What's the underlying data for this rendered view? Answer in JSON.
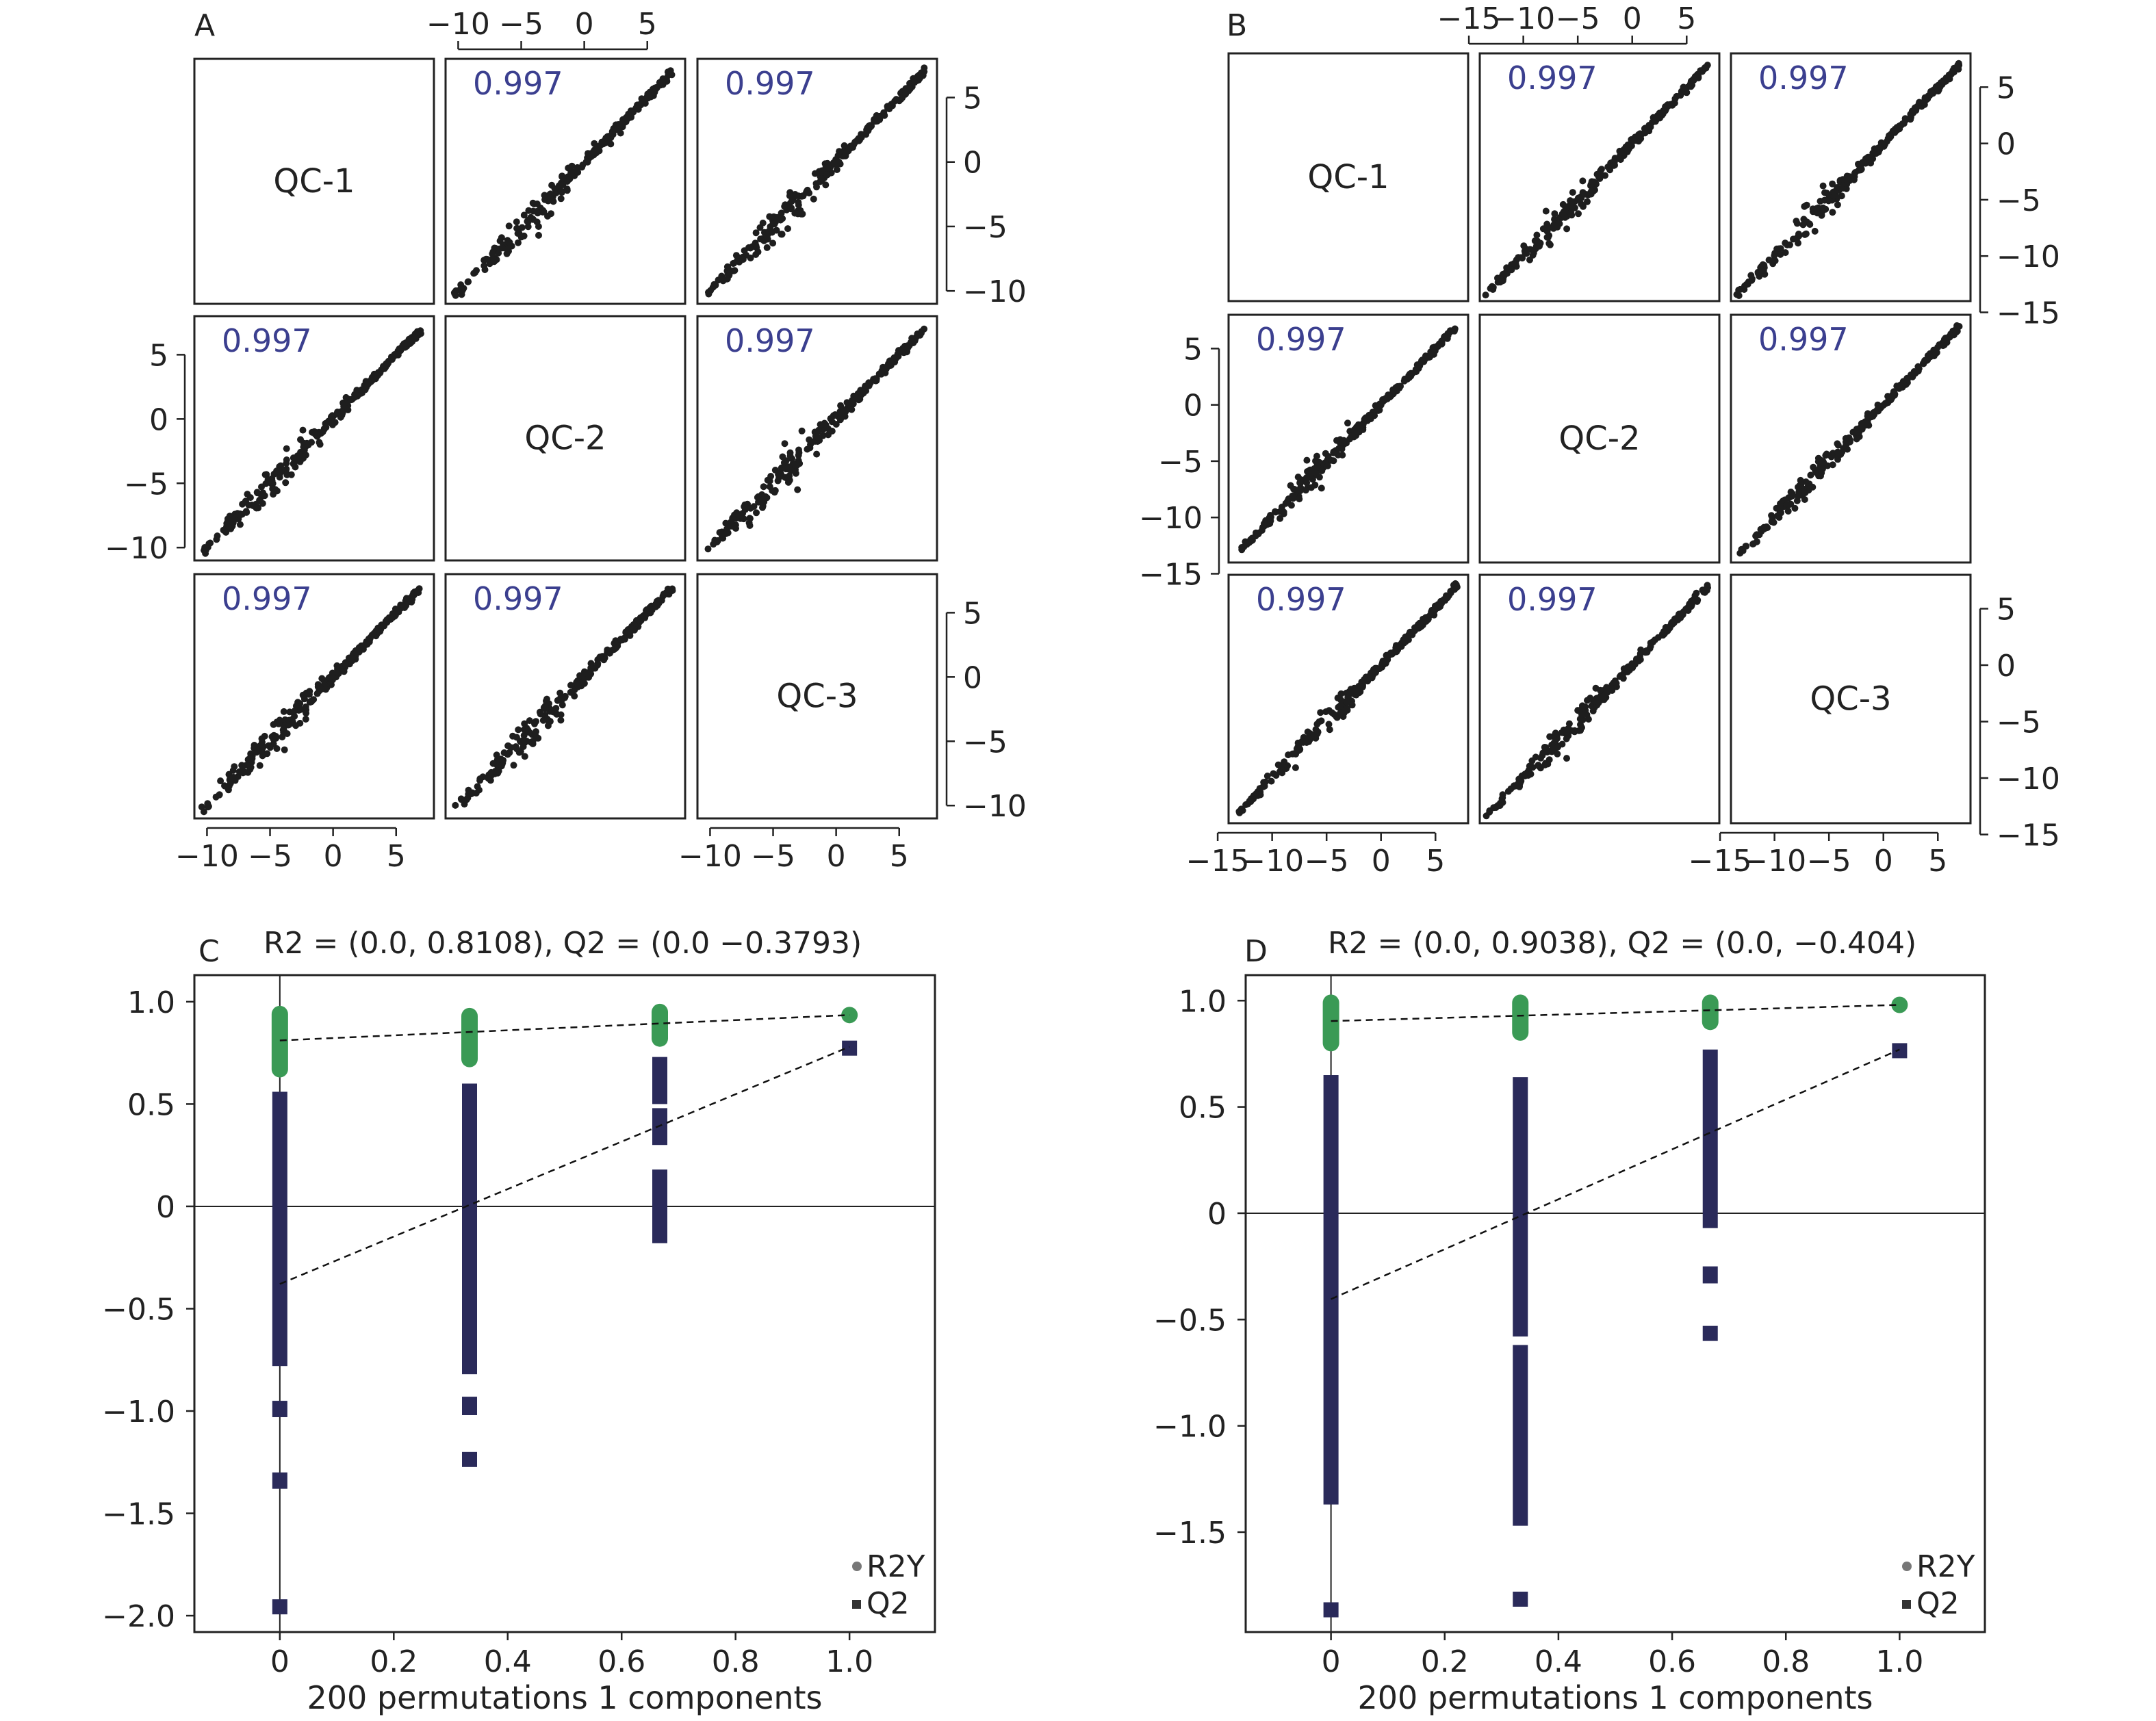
{
  "chart_data": [
    {
      "panel": "A",
      "type": "scatter",
      "samples": [
        "QC-1",
        "QC-2",
        "QC-3"
      ],
      "correlation": "0.997",
      "axis_range": [
        -11,
        8
      ],
      "tick_values": [
        -10,
        -5,
        0,
        5
      ],
      "tick_labels": [
        "−10",
        "−5",
        "0",
        "5"
      ],
      "grid": false
    },
    {
      "panel": "B",
      "type": "scatter",
      "samples": [
        "QC-1",
        "QC-2",
        "QC-3"
      ],
      "correlation": "0.997",
      "axis_range": [
        -14,
        8
      ],
      "tick_values": [
        -15,
        -10,
        -5,
        0,
        5
      ],
      "tick_labels": [
        "−15",
        "−10",
        "−5",
        "0",
        "5"
      ],
      "grid": false
    },
    {
      "panel": "C",
      "type": "scatter",
      "title": "R2 = (0.0, 0.8108), Q2 = (0.0 −0.3793)",
      "xlabel": "200 permutations 1 components",
      "ylabel": "",
      "xlim": [
        -0.15,
        1.15
      ],
      "ylim": [
        -2.08,
        1.13
      ],
      "x_ticks": [
        0,
        0.2,
        0.4,
        0.6,
        0.8,
        1.0
      ],
      "x_tick_labels": [
        "0",
        "0.2",
        "0.4",
        "0.6",
        "0.8",
        "1.0"
      ],
      "y_ticks": [
        1.0,
        0.5,
        0,
        -0.5,
        -1.0,
        -1.5,
        -2.0
      ],
      "y_tick_labels": [
        "1.0",
        "0.5",
        "0",
        "−0.5",
        "−1.0",
        "−1.5",
        "−2.0"
      ],
      "legend": [
        "R2Y",
        "Q2"
      ],
      "legend_position": "bottom-right",
      "r2y_line": [
        [
          0.0,
          0.8108
        ],
        [
          1.0,
          0.935
        ]
      ],
      "q2_line": [
        [
          0.0,
          -0.3793
        ],
        [
          1.0,
          0.78
        ]
      ],
      "series": [
        {
          "name": "R2Y",
          "points": [
            {
              "x": 0.0,
              "y_min": 0.67,
              "y_max": 0.94
            },
            {
              "x": 0.333,
              "y_min": 0.72,
              "y_max": 0.93
            },
            {
              "x": 0.667,
              "y_min": 0.82,
              "y_max": 0.95
            },
            {
              "x": 1.0,
              "y_min": 0.935,
              "y_max": 0.935
            }
          ]
        },
        {
          "name": "Q2",
          "segments": [
            {
              "x": 0.0,
              "from": 0.56,
              "to": -0.78
            },
            {
              "x": 0.0,
              "from": -0.95,
              "to": -1.03
            },
            {
              "x": 0.0,
              "from": -1.3,
              "to": -1.38
            },
            {
              "x": 0.0,
              "from": -1.92,
              "to": -1.98
            },
            {
              "x": 0.333,
              "from": 0.6,
              "to": -0.82
            },
            {
              "x": 0.333,
              "from": -0.93,
              "to": -1.02
            },
            {
              "x": 0.333,
              "from": -1.2,
              "to": -1.26
            },
            {
              "x": 0.667,
              "from": 0.73,
              "to": 0.5
            },
            {
              "x": 0.667,
              "from": 0.48,
              "to": 0.3
            },
            {
              "x": 0.667,
              "from": 0.18,
              "to": -0.18
            },
            {
              "x": 1.0,
              "from": 0.81,
              "to": 0.75
            }
          ]
        }
      ]
    },
    {
      "panel": "D",
      "type": "scatter",
      "title": "R2 = (0.0, 0.9038), Q2 = (0.0, −0.404)",
      "xlabel": "200 permutations 1 components",
      "ylabel": "",
      "xlim": [
        -0.15,
        1.15
      ],
      "ylim": [
        -1.97,
        1.12
      ],
      "x_ticks": [
        0,
        0.2,
        0.4,
        0.6,
        0.8,
        1.0
      ],
      "x_tick_labels": [
        "0",
        "0.2",
        "0.4",
        "0.6",
        "0.8",
        "1.0"
      ],
      "y_ticks": [
        1.0,
        0.5,
        0,
        -0.5,
        -1.0,
        -1.5
      ],
      "y_tick_labels": [
        "1.0",
        "0.5",
        "0",
        "−0.5",
        "−1.0",
        "−1.5"
      ],
      "legend": [
        "R2Y",
        "Q2"
      ],
      "legend_position": "bottom-right",
      "r2y_line": [
        [
          0.0,
          0.9038
        ],
        [
          1.0,
          0.98
        ]
      ],
      "q2_line": [
        [
          0.0,
          -0.404
        ],
        [
          1.0,
          0.77
        ]
      ],
      "series": [
        {
          "name": "R2Y",
          "points": [
            {
              "x": 0.0,
              "y_min": 0.8,
              "y_max": 0.99
            },
            {
              "x": 0.333,
              "y_min": 0.85,
              "y_max": 0.99
            },
            {
              "x": 0.667,
              "y_min": 0.9,
              "y_max": 0.99
            },
            {
              "x": 1.0,
              "y_min": 0.98,
              "y_max": 0.98
            }
          ]
        },
        {
          "name": "Q2",
          "segments": [
            {
              "x": 0.0,
              "from": 0.65,
              "to": -1.37
            },
            {
              "x": 0.0,
              "from": -1.83,
              "to": -1.9
            },
            {
              "x": 0.333,
              "from": 0.64,
              "to": -0.58
            },
            {
              "x": 0.333,
              "from": -0.62,
              "to": -1.47
            },
            {
              "x": 0.333,
              "from": -1.78,
              "to": -1.85
            },
            {
              "x": 0.667,
              "from": 0.77,
              "to": -0.07
            },
            {
              "x": 0.667,
              "from": -0.25,
              "to": -0.33
            },
            {
              "x": 0.667,
              "from": -0.53,
              "to": -0.6
            },
            {
              "x": 1.0,
              "from": 0.8,
              "to": 0.74
            }
          ]
        }
      ]
    }
  ],
  "colors": {
    "axis": "#222222",
    "corr_text": "#3b3f8f",
    "scatter_point": "#1e1e1e",
    "r2y_marker": "#3a9a55",
    "q2_marker": "#2a2a5a"
  }
}
